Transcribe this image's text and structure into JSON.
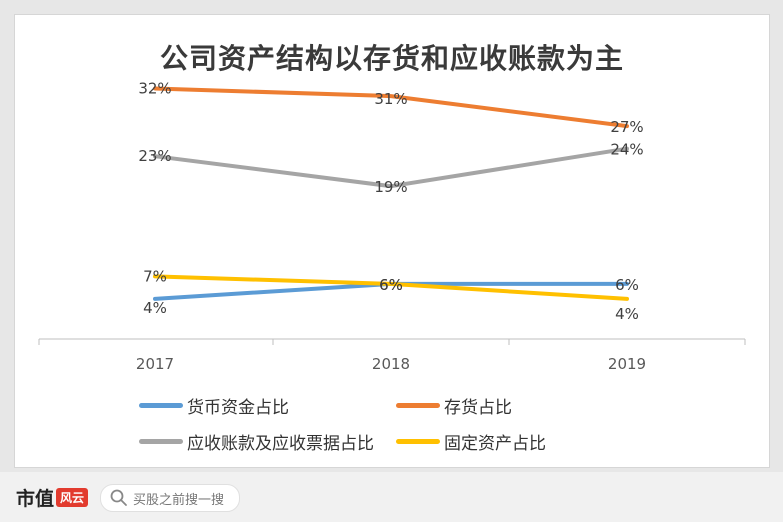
{
  "chart_data": {
    "type": "line",
    "title": "公司资产结构以存货和应收账款为主",
    "categories": [
      "2017",
      "2018",
      "2019"
    ],
    "ylim": [
      0,
      35
    ],
    "grid": false,
    "legend_position": "bottom",
    "series": [
      {
        "name": "货币资金占比",
        "values": [
          4,
          6,
          6
        ],
        "labels": [
          "4%",
          "6%",
          "6%"
        ],
        "color": "#5b9bd5"
      },
      {
        "name": "存货占比",
        "values": [
          32,
          31,
          27
        ],
        "labels": [
          "32%",
          "31%",
          "27%"
        ],
        "color": "#ed7d31"
      },
      {
        "name": "应收账款及应收票据占比",
        "values": [
          23,
          19,
          24
        ],
        "labels": [
          "23%",
          "19%",
          "24%"
        ],
        "color": "#a5a5a5"
      },
      {
        "name": "固定资产占比",
        "values": [
          7,
          6,
          4
        ],
        "labels": [
          "7%",
          "6%",
          "4%"
        ],
        "color": "#ffc000"
      }
    ]
  },
  "footer": {
    "brand": "市值",
    "brand_mark": "风云",
    "search_placeholder": "买股之前搜一搜",
    "search_icon": "search-icon"
  }
}
